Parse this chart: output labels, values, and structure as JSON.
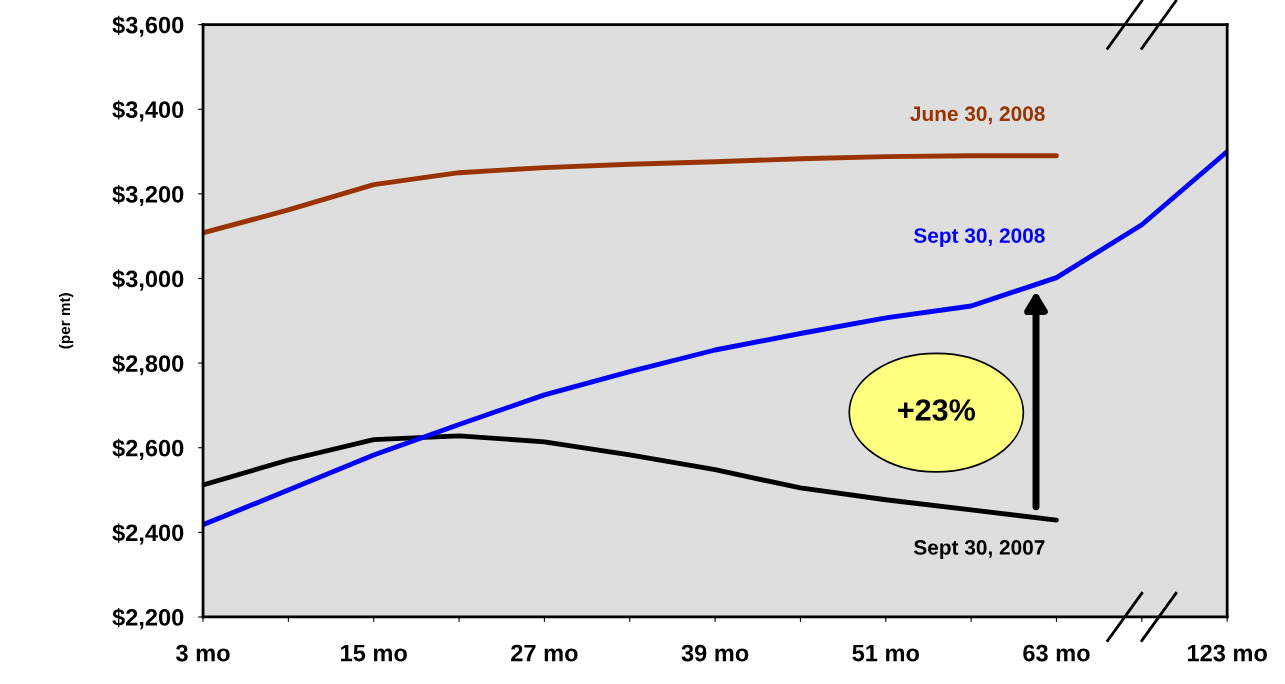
{
  "chart_data": {
    "type": "line",
    "ylabel": "(per mt)",
    "categories": [
      "3 mo",
      null,
      "15 mo",
      null,
      "27 mo",
      null,
      "39 mo",
      null,
      "51 mo",
      null,
      "63 mo",
      null,
      "123 mo"
    ],
    "ylim": [
      2200,
      3600
    ],
    "yticks": [
      {
        "value": 2200,
        "label": "$2,200"
      },
      {
        "value": 2400,
        "label": "$2,400"
      },
      {
        "value": 2600,
        "label": "$2,600"
      },
      {
        "value": 2800,
        "label": "$2,800"
      },
      {
        "value": 3000,
        "label": "$3,000"
      },
      {
        "value": 3200,
        "label": "$3,200"
      },
      {
        "value": 3400,
        "label": "$3,400"
      },
      {
        "value": 3600,
        "label": "$3,600"
      }
    ],
    "grid": false,
    "legend": false,
    "marker": "none",
    "line_style": "solid",
    "series": [
      {
        "name": "Sept 30, 2007",
        "color": "#000000",
        "values": [
          2512,
          2571,
          2619,
          2628,
          2614,
          2583,
          2548,
          2505,
          2477,
          2453,
          2429,
          null,
          null
        ]
      },
      {
        "name": "June 30, 2008",
        "color": "#993300",
        "values": [
          3108,
          3162,
          3222,
          3250,
          3262,
          3270,
          3276,
          3283,
          3288,
          3290,
          3290,
          null,
          null
        ]
      },
      {
        "name": "Sept 30, 2008",
        "color": "#0000ff",
        "values": [
          2418,
          2500,
          2583,
          2655,
          2725,
          2780,
          2831,
          2870,
          2907,
          2935,
          3002,
          3127,
          3300
        ]
      }
    ],
    "annotations": [
      "+23%"
    ]
  }
}
